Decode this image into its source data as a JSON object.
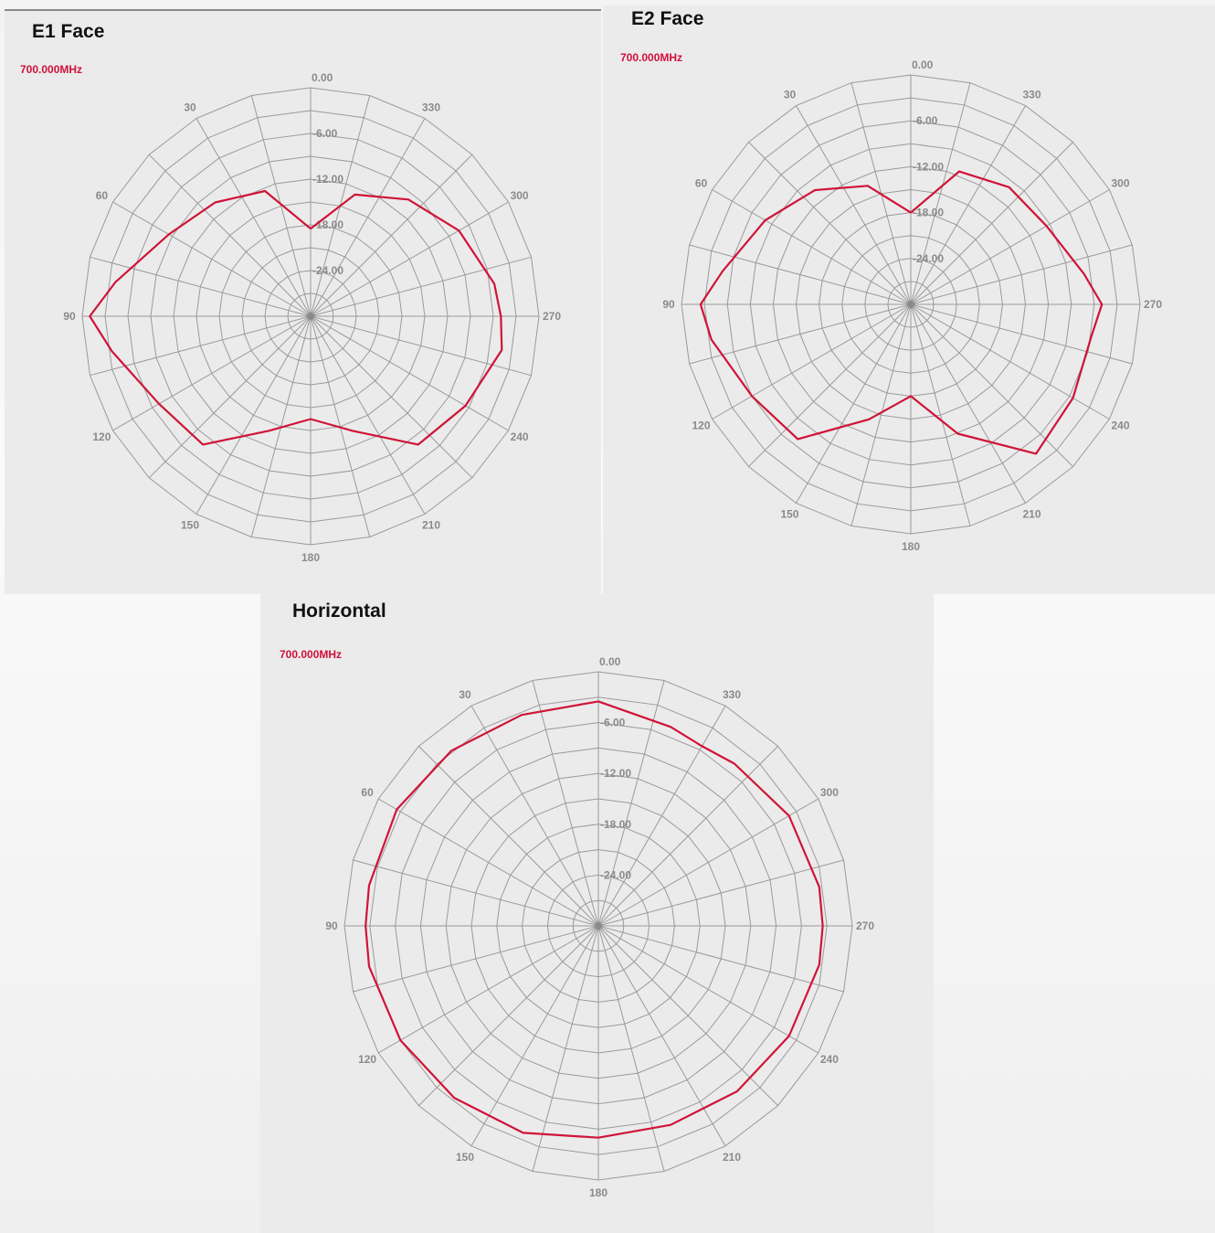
{
  "chart_data": [
    {
      "type": "line",
      "subtype": "polar",
      "title": "E1 Face",
      "frequency_label": "700.000MHz",
      "angle_ticks": [
        "0.00",
        "30",
        "60",
        "90",
        "120",
        "150",
        "180",
        "210",
        "240",
        "270",
        "300",
        "330"
      ],
      "radial_ticks": [
        "0.00",
        "-6.00",
        "-12.00",
        "-18.00",
        "-24.00"
      ],
      "radial_range_db": [
        -30,
        0
      ],
      "angle_direction": "counterclockwise",
      "zero_at": "top",
      "series": [
        {
          "color": "#d01437",
          "angles_deg": [
            0,
            20,
            40,
            60,
            80,
            90,
            100,
            120,
            140,
            160,
            180,
            200,
            220,
            240,
            260,
            270,
            280,
            300,
            320,
            340,
            360
          ],
          "values_db": [
            -18.5,
            -12.5,
            -10.5,
            -8.5,
            -4.0,
            -1.0,
            -3.5,
            -7.0,
            -8.0,
            -14.0,
            -16.5,
            -14.0,
            -8.0,
            -6.5,
            -4.5,
            -5.0,
            -5.5,
            -7.5,
            -10.0,
            -13.0,
            -18.5
          ]
        }
      ]
    },
    {
      "type": "line",
      "subtype": "polar",
      "title": "E2 Face",
      "frequency_label": "700.000MHz",
      "angle_ticks": [
        "0.00",
        "30",
        "60",
        "90",
        "120",
        "150",
        "180",
        "210",
        "240",
        "270",
        "300",
        "330"
      ],
      "radial_ticks": [
        "0.00",
        "-6.00",
        "-12.00",
        "-18.00",
        "-24.00"
      ],
      "radial_range_db": [
        -30,
        0
      ],
      "angle_direction": "counterclockwise",
      "zero_at": "top",
      "series": [
        {
          "color": "#d01437",
          "angles_deg": [
            0,
            20,
            40,
            60,
            80,
            90,
            100,
            120,
            140,
            160,
            180,
            200,
            220,
            240,
            260,
            270,
            280,
            300,
            320,
            340,
            360
          ],
          "values_db": [
            -18.0,
            -13.5,
            -10.5,
            -8.0,
            -5.0,
            -2.5,
            -3.5,
            -6.0,
            -7.0,
            -14.0,
            -18.0,
            -12.0,
            -4.5,
            -5.5,
            -6.0,
            -5.0,
            -7.0,
            -9.5,
            -10.0,
            -11.5,
            -18.0
          ]
        }
      ]
    },
    {
      "type": "line",
      "subtype": "polar",
      "title": "Horizontal",
      "frequency_label": "700.000MHz",
      "angle_ticks": [
        "0.00",
        "30",
        "60",
        "90",
        "120",
        "150",
        "180",
        "210",
        "240",
        "270",
        "300",
        "330"
      ],
      "radial_ticks": [
        "0.00",
        "-6.00",
        "-12.00",
        "-18.00",
        "-24.00"
      ],
      "radial_range_db": [
        -30,
        0
      ],
      "angle_direction": "counterclockwise",
      "zero_at": "top",
      "series": [
        {
          "color": "#d01437",
          "angles_deg": [
            0,
            20,
            40,
            60,
            80,
            90,
            100,
            120,
            140,
            160,
            180,
            200,
            220,
            240,
            260,
            270,
            280,
            300,
            320,
            330,
            340,
            360
          ],
          "values_db": [
            -3.5,
            -3.5,
            -3.0,
            -2.5,
            -2.5,
            -2.5,
            -2.5,
            -3.0,
            -3.5,
            -4.0,
            -5.0,
            -5.0,
            -4.5,
            -4.0,
            -3.5,
            -3.5,
            -3.5,
            -4.0,
            -5.0,
            -5.5,
            -5.0,
            -3.5
          ]
        }
      ]
    }
  ]
}
